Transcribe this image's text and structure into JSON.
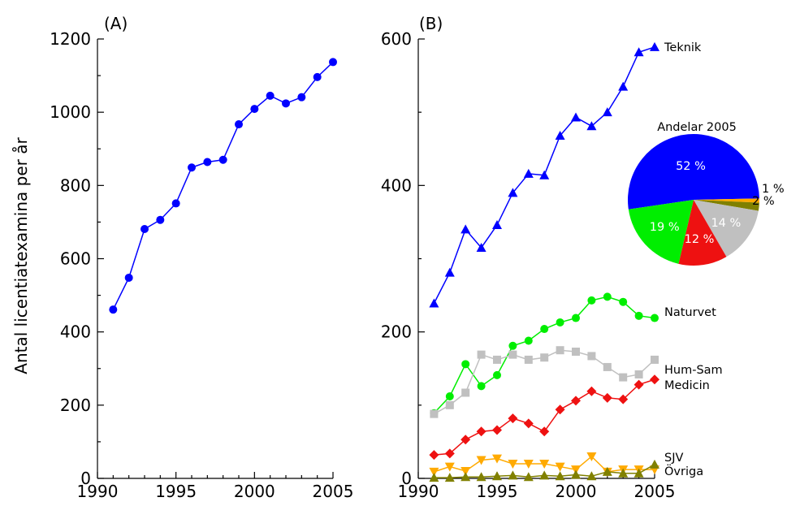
{
  "chart_data": [
    {
      "type": "line",
      "panel_label": "(A)",
      "ylabel": "Antal licentiatexamina per år",
      "xlim": [
        1990,
        2005
      ],
      "ylim": [
        0,
        1200
      ],
      "xticks": [
        1990,
        1995,
        2000,
        2005
      ],
      "yticks": [
        0,
        200,
        400,
        600,
        800,
        1000,
        1200
      ],
      "x": [
        1991,
        1992,
        1993,
        1994,
        1995,
        1996,
        1997,
        1998,
        1999,
        2000,
        2001,
        2002,
        2003,
        2004,
        2005
      ],
      "series": [
        {
          "color": "#0000ff",
          "marker": "circle",
          "values": [
            461,
            548,
            681,
            706,
            751,
            849,
            864,
            870,
            967,
            1009,
            1045,
            1024,
            1041,
            1096,
            1137
          ]
        }
      ]
    },
    {
      "type": "line",
      "panel_label": "(B)",
      "xlim": [
        1990,
        2005
      ],
      "ylim": [
        0,
        600
      ],
      "xticks": [
        1990,
        1995,
        2000,
        2005
      ],
      "yticks": [
        0,
        200,
        400,
        600
      ],
      "x": [
        1991,
        1992,
        1993,
        1994,
        1995,
        1996,
        1997,
        1998,
        1999,
        2000,
        2001,
        2002,
        2003,
        2004,
        2005
      ],
      "series": [
        {
          "name": "Teknik",
          "color": "#0000ff",
          "marker": "triangle-up",
          "values": [
            239,
            281,
            340,
            315,
            346,
            390,
            416,
            414,
            468,
            493,
            481,
            500,
            535,
            582,
            589
          ]
        },
        {
          "name": "Naturvet",
          "color": "#00ee00",
          "marker": "circle",
          "values": [
            89,
            112,
            156,
            126,
            141,
            181,
            188,
            204,
            213,
            219,
            243,
            248,
            241,
            222,
            219
          ]
        },
        {
          "name": "Hum-Sam",
          "color": "#c0c0c0",
          "marker": "square",
          "values": [
            88,
            100,
            117,
            169,
            162,
            169,
            162,
            165,
            175,
            173,
            167,
            152,
            138,
            142,
            162
          ]
        },
        {
          "name": "Medicin",
          "color": "#ee1111",
          "marker": "diamond",
          "values": [
            32,
            34,
            53,
            64,
            66,
            82,
            75,
            64,
            94,
            106,
            119,
            110,
            108,
            128,
            135
          ]
        },
        {
          "name": "SJV",
          "color": "#ffaa00",
          "marker": "triangle-down",
          "values": [
            9,
            16,
            10,
            25,
            27,
            20,
            20,
            20,
            16,
            12,
            30,
            9,
            12,
            12,
            12
          ]
        },
        {
          "name": "Övriga",
          "color": "#808000",
          "marker": "triangle-up",
          "values": [
            1,
            1,
            2,
            2,
            3,
            4,
            2,
            4,
            3,
            5,
            3,
            9,
            7,
            7,
            19
          ]
        }
      ]
    },
    {
      "type": "pie",
      "title": "Andelar 2005",
      "slices": [
        {
          "label": "52 %",
          "value": 52,
          "color": "#0000ff"
        },
        {
          "label": "1 %",
          "value": 1,
          "color": "#ffaa00"
        },
        {
          "label": "2 %",
          "value": 2,
          "color": "#808000"
        },
        {
          "label": "14 %",
          "value": 14,
          "color": "#c0c0c0"
        },
        {
          "label": "12 %",
          "value": 12,
          "color": "#ee1111"
        },
        {
          "label": "19 %",
          "value": 19,
          "color": "#00ee00"
        }
      ]
    }
  ]
}
